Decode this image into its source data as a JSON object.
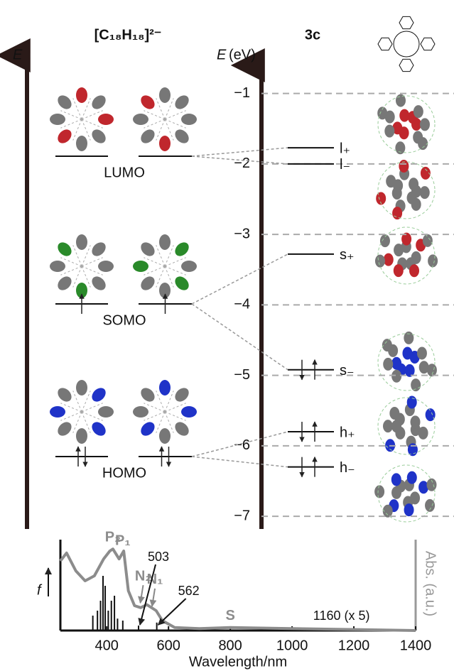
{
  "left_panel": {
    "title": "[C₁₈H₁₈]²⁻",
    "axis_label": "E",
    "levels": [
      {
        "label": "LUMO",
        "electrons": 0
      },
      {
        "label": "SOMO",
        "electrons": 1
      },
      {
        "label": "HOMO",
        "electrons": 2
      }
    ]
  },
  "right_panel": {
    "title": "3c",
    "axis_symbol": "E",
    "axis_unit": "(eV)",
    "ylim": [
      -7.18,
      -0.53
    ],
    "yticks": [
      {
        "value": -1,
        "label": "−1"
      },
      {
        "value": -2,
        "label": "−2"
      },
      {
        "value": -3,
        "label": "−3"
      },
      {
        "value": -4,
        "label": "−4"
      },
      {
        "value": -5,
        "label": "−5"
      },
      {
        "value": -6,
        "label": "−6"
      },
      {
        "value": -7,
        "label": "−7"
      }
    ],
    "levels": [
      {
        "label": "l₊",
        "energy": -1.77,
        "electrons": 0
      },
      {
        "label": "l₋",
        "energy": -2.0,
        "electrons": 0
      },
      {
        "label": "s₊",
        "energy": -3.28,
        "electrons": 0
      },
      {
        "label": "s₋",
        "energy": -4.92,
        "electrons": 2
      },
      {
        "label": "h₊",
        "energy": -5.8,
        "electrons": 2
      },
      {
        "label": "h₋",
        "energy": -6.3,
        "electrons": 2
      }
    ]
  },
  "spectrum": {
    "xlabel": "Wavelength/nm",
    "ylabel_left": "f",
    "ylabel_right": "Abs. (a.u.)",
    "xlim": [
      250,
      1400
    ],
    "xticks": [
      400,
      600,
      800,
      1000,
      1200,
      1400
    ],
    "ylim": [
      0,
      1
    ],
    "absorbance": {
      "x": [
        250,
        270,
        300,
        330,
        360,
        390,
        410,
        420,
        440,
        455,
        470,
        490,
        510,
        530,
        560,
        580,
        620,
        700,
        800,
        1000,
        1200,
        1400
      ],
      "y": [
        0.7,
        0.78,
        0.6,
        0.5,
        0.55,
        0.72,
        0.8,
        0.82,
        0.72,
        0.8,
        0.4,
        0.25,
        0.23,
        0.26,
        0.2,
        0.1,
        0.03,
        0.02,
        0.03,
        0.02,
        0.01,
        0.0
      ]
    },
    "oscillator": {
      "x": [
        355,
        370,
        380,
        388,
        395,
        405,
        415,
        425,
        435,
        452,
        503,
        562,
        1160
      ],
      "f": [
        0.15,
        0.2,
        0.3,
        0.55,
        0.45,
        0.2,
        0.3,
        0.35,
        0.12,
        0.1,
        0.05,
        0.08,
        0.02
      ]
    },
    "annotations": [
      {
        "text": "P₂",
        "x": 420
      },
      {
        "text": "P₁",
        "x": 452
      },
      {
        "text": "N₂",
        "x": 518
      },
      {
        "text": "N₁",
        "x": 556
      },
      {
        "text": "S",
        "x": 800
      }
    ],
    "stick_labels": [
      503,
      562,
      {
        "value": 1160,
        "label": "1160 (x 5)"
      }
    ]
  }
}
